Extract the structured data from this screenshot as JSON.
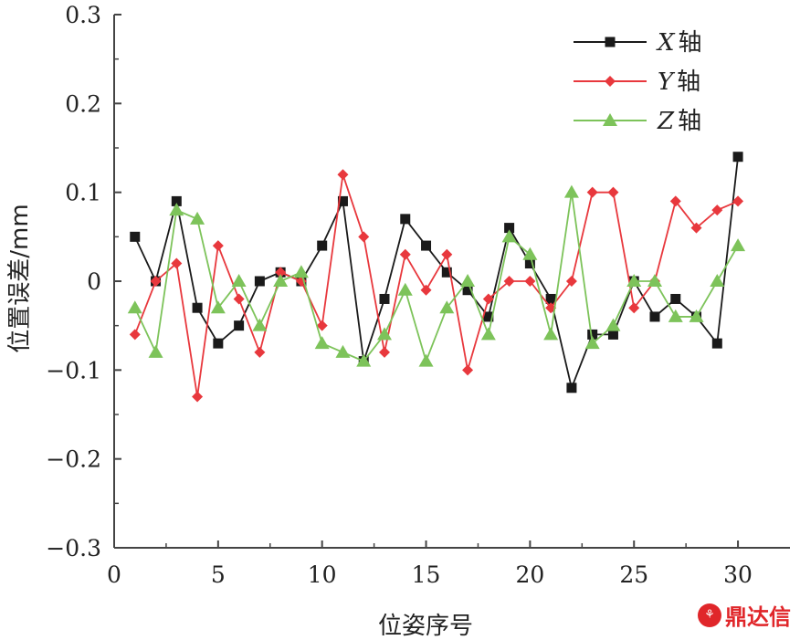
{
  "chart_data": {
    "type": "line",
    "title": "",
    "xlabel": "位姿序号",
    "ylabel": "位置误差/mm",
    "xlim": [
      0,
      32.5
    ],
    "ylim": [
      -0.3,
      0.3
    ],
    "xticks": [
      0,
      5,
      10,
      15,
      20,
      25,
      30
    ],
    "xtick_labels": [
      "0",
      "5",
      "10",
      "15",
      "20",
      "25",
      "30"
    ],
    "yticks": [
      0.3,
      0.2,
      0.1,
      0,
      -0.1,
      -0.2,
      -0.3
    ],
    "ytick_labels": [
      "0.3",
      "0.2",
      "0.1",
      "0",
      "−0.1",
      "−0.2",
      "−0.3"
    ],
    "grid": false,
    "legend_position": "top-right",
    "x": [
      1,
      2,
      3,
      4,
      5,
      6,
      7,
      8,
      9,
      10,
      11,
      12,
      13,
      14,
      15,
      16,
      17,
      18,
      19,
      20,
      21,
      22,
      23,
      24,
      25,
      26,
      27,
      28,
      29,
      30
    ],
    "series": [
      {
        "name": "X",
        "name_suffix": "轴",
        "color": "#1a1a1a",
        "marker": "square",
        "values": [
          0.05,
          0,
          0.09,
          -0.03,
          -0.07,
          -0.05,
          0,
          0.01,
          0,
          0.04,
          0.09,
          -0.09,
          -0.02,
          0.07,
          0.04,
          0.01,
          -0.01,
          -0.04,
          0.06,
          0.02,
          -0.02,
          -0.12,
          -0.06,
          -0.06,
          0,
          -0.04,
          -0.02,
          -0.04,
          -0.07,
          0.14
        ]
      },
      {
        "name": "Y",
        "name_suffix": "轴",
        "color": "#e8383d",
        "marker": "diamond",
        "values": [
          -0.06,
          0,
          0.02,
          -0.13,
          0.04,
          -0.02,
          -0.08,
          0.01,
          0,
          -0.05,
          0.12,
          0.05,
          -0.08,
          0.03,
          -0.01,
          0.03,
          -0.1,
          -0.02,
          0,
          0,
          -0.03,
          0,
          0.1,
          0.1,
          -0.03,
          0,
          0.09,
          0.06,
          0.08,
          0.09
        ]
      },
      {
        "name": "Z",
        "name_suffix": "轴",
        "color": "#7dc35a",
        "marker": "triangle",
        "values": [
          -0.03,
          -0.08,
          0.08,
          0.07,
          -0.03,
          0,
          -0.05,
          0,
          0.01,
          -0.07,
          -0.08,
          -0.09,
          -0.06,
          -0.01,
          -0.09,
          -0.03,
          0,
          -0.06,
          0.05,
          0.03,
          -0.06,
          0.1,
          -0.07,
          -0.05,
          0,
          0,
          -0.04,
          -0.04,
          0,
          0.04
        ]
      }
    ]
  },
  "watermark": {
    "logo_glyph": "⚘",
    "text": "鼎达信"
  }
}
